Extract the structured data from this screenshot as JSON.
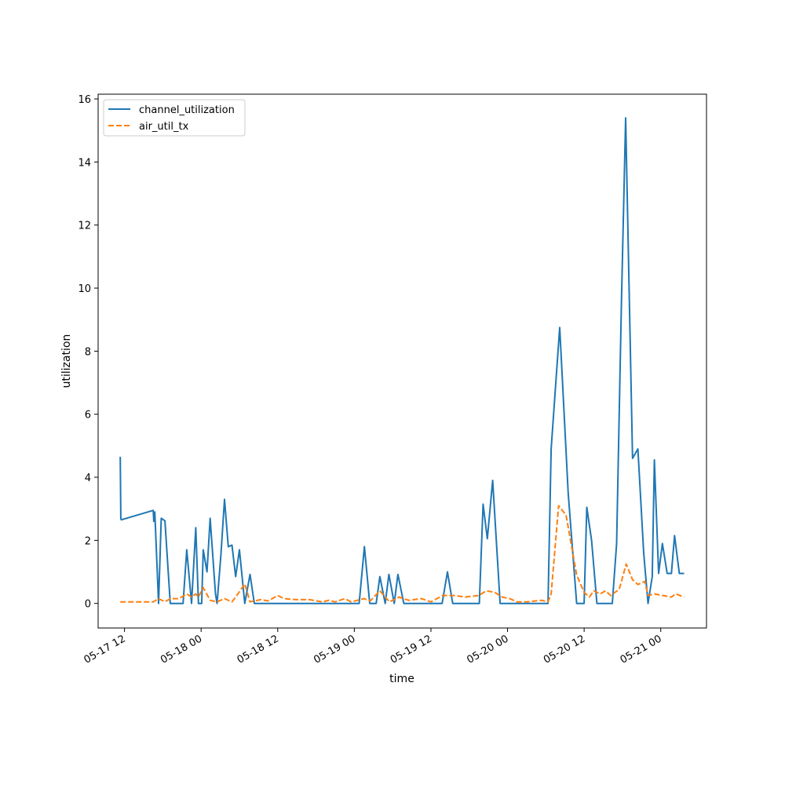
{
  "chart_data": {
    "type": "line",
    "xlabel": "time",
    "ylabel": "utilization",
    "xlim": [
      "2024-05-17 07:52",
      "2024-05-21 07:10"
    ],
    "ylim": [
      -0.78,
      16.15
    ],
    "x_tick_labels": [
      "05-17 12",
      "05-18 00",
      "05-18 12",
      "05-19 00",
      "05-19 12",
      "05-20 00",
      "05-20 12",
      "05-21 00"
    ],
    "x_tick_values": [
      "2024-05-17 12:00",
      "2024-05-18 00:00",
      "2024-05-18 12:00",
      "2024-05-19 00:00",
      "2024-05-19 12:00",
      "2024-05-20 00:00",
      "2024-05-20 12:00",
      "2024-05-21 00:00"
    ],
    "y_ticks": [
      0,
      2,
      4,
      6,
      8,
      10,
      12,
      14,
      16
    ],
    "grid": false,
    "legend": {
      "placement": "top-left"
    },
    "series": [
      {
        "name": "channel_utilization",
        "color": "#1f77b4",
        "style": "solid",
        "points": [
          [
            "2024-05-17 11:20",
            4.65
          ],
          [
            "2024-05-17 11:25",
            2.7
          ],
          [
            "2024-05-17 11:30",
            2.65
          ],
          [
            "2024-05-17 16:30",
            2.95
          ],
          [
            "2024-05-17 16:35",
            2.6
          ],
          [
            "2024-05-17 16:45",
            2.9
          ],
          [
            "2024-05-17 17:20",
            0.0
          ],
          [
            "2024-05-17 17:45",
            2.7
          ],
          [
            "2024-05-17 18:20",
            2.62
          ],
          [
            "2024-05-17 19:10",
            0.0
          ],
          [
            "2024-05-17 21:10",
            0.0
          ],
          [
            "2024-05-17 21:45",
            1.7
          ],
          [
            "2024-05-17 22:30",
            0.0
          ],
          [
            "2024-05-17 23:10",
            2.4
          ],
          [
            "2024-05-17 23:35",
            0.0
          ],
          [
            "2024-05-18 00:05",
            0.0
          ],
          [
            "2024-05-18 00:20",
            1.7
          ],
          [
            "2024-05-18 00:55",
            1.0
          ],
          [
            "2024-05-18 01:25",
            2.7
          ],
          [
            "2024-05-18 02:15",
            0.3
          ],
          [
            "2024-05-18 02:30",
            0.0
          ],
          [
            "2024-05-18 03:05",
            1.5
          ],
          [
            "2024-05-18 03:40",
            3.3
          ],
          [
            "2024-05-18 04:15",
            1.8
          ],
          [
            "2024-05-18 04:50",
            1.85
          ],
          [
            "2024-05-18 05:25",
            0.85
          ],
          [
            "2024-05-18 06:00",
            1.7
          ],
          [
            "2024-05-18 06:50",
            0.0
          ],
          [
            "2024-05-18 07:40",
            0.92
          ],
          [
            "2024-05-18 08:20",
            0.0
          ],
          [
            "2024-05-19 00:45",
            0.0
          ],
          [
            "2024-05-19 01:35",
            1.8
          ],
          [
            "2024-05-19 02:25",
            0.0
          ],
          [
            "2024-05-19 03:25",
            0.0
          ],
          [
            "2024-05-19 04:00",
            0.85
          ],
          [
            "2024-05-19 04:50",
            0.0
          ],
          [
            "2024-05-19 05:25",
            0.92
          ],
          [
            "2024-05-19 06:15",
            0.0
          ],
          [
            "2024-05-19 06:50",
            0.92
          ],
          [
            "2024-05-19 07:45",
            0.0
          ],
          [
            "2024-05-19 13:45",
            0.0
          ],
          [
            "2024-05-19 14:35",
            1.0
          ],
          [
            "2024-05-19 15:25",
            0.0
          ],
          [
            "2024-05-19 19:35",
            0.0
          ],
          [
            "2024-05-19 20:10",
            3.15
          ],
          [
            "2024-05-19 20:50",
            2.05
          ],
          [
            "2024-05-19 21:40",
            3.9
          ],
          [
            "2024-05-19 22:50",
            0.0
          ],
          [
            "2024-05-20 06:20",
            0.0
          ],
          [
            "2024-05-20 06:50",
            4.9
          ],
          [
            "2024-05-20 08:10",
            8.75
          ],
          [
            "2024-05-20 09:30",
            3.5
          ],
          [
            "2024-05-20 10:50",
            0.0
          ],
          [
            "2024-05-20 12:00",
            0.0
          ],
          [
            "2024-05-20 12:25",
            3.05
          ],
          [
            "2024-05-20 13:10",
            2.0
          ],
          [
            "2024-05-20 14:00",
            0.0
          ],
          [
            "2024-05-20 16:25",
            0.0
          ],
          [
            "2024-05-20 17:05",
            1.9
          ],
          [
            "2024-05-20 17:50",
            9.5
          ],
          [
            "2024-05-20 18:30",
            15.4
          ],
          [
            "2024-05-20 19:35",
            4.6
          ],
          [
            "2024-05-20 20:25",
            4.9
          ],
          [
            "2024-05-20 21:20",
            1.6
          ],
          [
            "2024-05-20 22:00",
            0.0
          ],
          [
            "2024-05-20 22:40",
            0.85
          ],
          [
            "2024-05-20 23:00",
            4.55
          ],
          [
            "2024-05-20 23:40",
            0.95
          ],
          [
            "2024-05-21 00:15",
            1.9
          ],
          [
            "2024-05-21 01:00",
            0.95
          ],
          [
            "2024-05-21 01:40",
            0.95
          ],
          [
            "2024-05-21 02:10",
            2.15
          ],
          [
            "2024-05-21 02:55",
            0.95
          ],
          [
            "2024-05-21 03:40",
            0.95
          ]
        ]
      },
      {
        "name": "air_util_tx",
        "color": "#ff7f0e",
        "style": "dashed",
        "points": [
          [
            "2024-05-17 11:20",
            0.05
          ],
          [
            "2024-05-17 16:30",
            0.05
          ],
          [
            "2024-05-17 17:20",
            0.15
          ],
          [
            "2024-05-17 18:20",
            0.05
          ],
          [
            "2024-05-17 19:10",
            0.15
          ],
          [
            "2024-05-17 20:30",
            0.15
          ],
          [
            "2024-05-17 21:45",
            0.3
          ],
          [
            "2024-05-17 22:30",
            0.2
          ],
          [
            "2024-05-17 23:10",
            0.3
          ],
          [
            "2024-05-17 23:35",
            0.2
          ],
          [
            "2024-05-18 00:20",
            0.5
          ],
          [
            "2024-05-18 01:25",
            0.1
          ],
          [
            "2024-05-18 02:30",
            0.05
          ],
          [
            "2024-05-18 03:40",
            0.15
          ],
          [
            "2024-05-18 04:50",
            0.05
          ],
          [
            "2024-05-18 05:25",
            0.2
          ],
          [
            "2024-05-18 06:50",
            0.62
          ],
          [
            "2024-05-18 07:40",
            0.05
          ],
          [
            "2024-05-18 09:20",
            0.12
          ],
          [
            "2024-05-18 10:30",
            0.08
          ],
          [
            "2024-05-18 12:00",
            0.25
          ],
          [
            "2024-05-18 13:00",
            0.15
          ],
          [
            "2024-05-18 15:00",
            0.12
          ],
          [
            "2024-05-18 17:00",
            0.12
          ],
          [
            "2024-05-18 19:00",
            0.05
          ],
          [
            "2024-05-18 20:00",
            0.1
          ],
          [
            "2024-05-18 21:00",
            0.05
          ],
          [
            "2024-05-18 22:30",
            0.15
          ],
          [
            "2024-05-18 23:30",
            0.05
          ],
          [
            "2024-05-19 00:30",
            0.1
          ],
          [
            "2024-05-19 01:30",
            0.15
          ],
          [
            "2024-05-19 02:30",
            0.08
          ],
          [
            "2024-05-19 04:00",
            0.4
          ],
          [
            "2024-05-19 05:30",
            0.05
          ],
          [
            "2024-05-19 07:00",
            0.2
          ],
          [
            "2024-05-19 08:30",
            0.1
          ],
          [
            "2024-05-19 10:30",
            0.15
          ],
          [
            "2024-05-19 12:00",
            0.05
          ],
          [
            "2024-05-19 13:50",
            0.25
          ],
          [
            "2024-05-19 15:40",
            0.25
          ],
          [
            "2024-05-19 17:20",
            0.2
          ],
          [
            "2024-05-19 19:30",
            0.25
          ],
          [
            "2024-05-19 20:40",
            0.4
          ],
          [
            "2024-05-19 22:00",
            0.35
          ],
          [
            "2024-05-19 23:10",
            0.2
          ],
          [
            "2024-05-20 00:20",
            0.15
          ],
          [
            "2024-05-20 01:30",
            0.05
          ],
          [
            "2024-05-20 03:00",
            0.05
          ],
          [
            "2024-05-20 05:20",
            0.1
          ],
          [
            "2024-05-20 06:20",
            0.05
          ],
          [
            "2024-05-20 06:50",
            0.3
          ],
          [
            "2024-05-20 08:00",
            3.1
          ],
          [
            "2024-05-20 09:10",
            2.8
          ],
          [
            "2024-05-20 10:50",
            0.9
          ],
          [
            "2024-05-20 12:00",
            0.35
          ],
          [
            "2024-05-20 12:50",
            0.2
          ],
          [
            "2024-05-20 13:30",
            0.4
          ],
          [
            "2024-05-20 14:30",
            0.3
          ],
          [
            "2024-05-20 15:20",
            0.4
          ],
          [
            "2024-05-20 16:10",
            0.25
          ],
          [
            "2024-05-20 17:30",
            0.45
          ],
          [
            "2024-05-20 18:35",
            1.25
          ],
          [
            "2024-05-20 19:35",
            0.75
          ],
          [
            "2024-05-20 20:25",
            0.6
          ],
          [
            "2024-05-20 21:30",
            0.7
          ],
          [
            "2024-05-20 22:00",
            0.25
          ],
          [
            "2024-05-20 23:00",
            0.3
          ],
          [
            "2024-05-21 00:20",
            0.25
          ],
          [
            "2024-05-21 01:40",
            0.2
          ],
          [
            "2024-05-21 02:20",
            0.3
          ],
          [
            "2024-05-21 03:40",
            0.2
          ]
        ]
      }
    ]
  }
}
